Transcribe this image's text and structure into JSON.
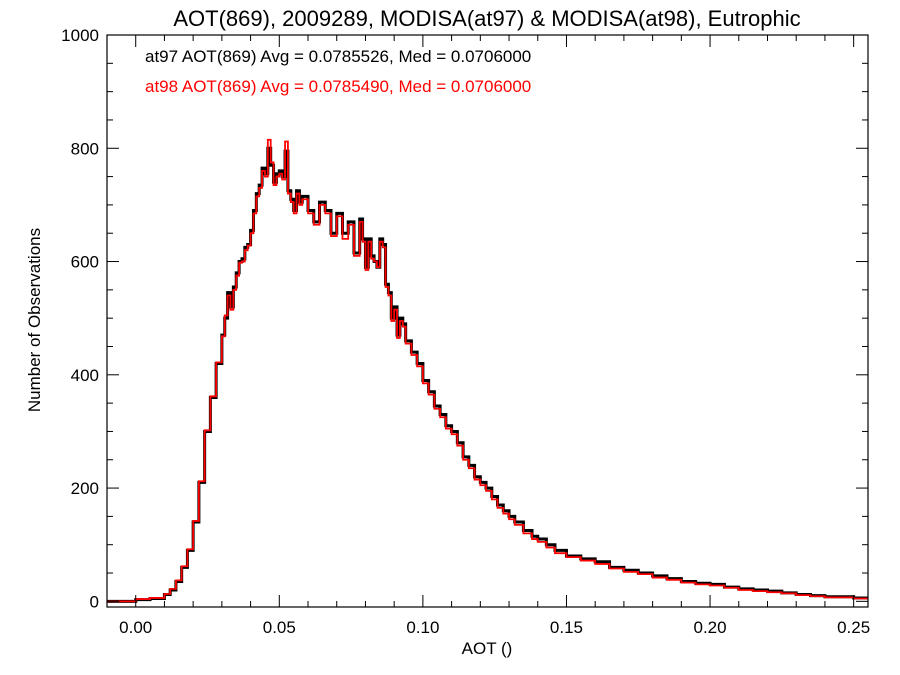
{
  "chart_data": {
    "type": "line",
    "title": "AOT(869), 2009289, MODISA(at97) & MODISA(at98), Eutrophic",
    "xlabel": "AOT ()",
    "ylabel": "Number of Observations",
    "xlim": [
      -0.01,
      0.255
    ],
    "ylim": [
      -10,
      1000
    ],
    "xticks": [
      0.0,
      0.05,
      0.1,
      0.15,
      0.2,
      0.25
    ],
    "xtick_labels": [
      "0.00",
      "0.05",
      "0.10",
      "0.15",
      "0.20",
      "0.25"
    ],
    "yticks": [
      0,
      200,
      400,
      600,
      800,
      1000
    ],
    "ytick_labels": [
      "0",
      "200",
      "400",
      "600",
      "800",
      "1000"
    ],
    "grid": false,
    "legend_placement": "top-left",
    "step": "histogram",
    "x": [
      -0.01,
      0.0,
      0.005,
      0.01,
      0.012,
      0.014,
      0.016,
      0.018,
      0.02,
      0.022,
      0.024,
      0.026,
      0.028,
      0.03,
      0.031,
      0.032,
      0.033,
      0.034,
      0.035,
      0.036,
      0.037,
      0.038,
      0.039,
      0.04,
      0.041,
      0.042,
      0.043,
      0.044,
      0.045,
      0.046,
      0.047,
      0.048,
      0.049,
      0.05,
      0.051,
      0.052,
      0.053,
      0.054,
      0.055,
      0.056,
      0.057,
      0.058,
      0.06,
      0.062,
      0.064,
      0.066,
      0.068,
      0.07,
      0.072,
      0.074,
      0.076,
      0.078,
      0.079,
      0.08,
      0.081,
      0.082,
      0.083,
      0.084,
      0.085,
      0.086,
      0.087,
      0.088,
      0.089,
      0.09,
      0.091,
      0.092,
      0.093,
      0.094,
      0.096,
      0.098,
      0.1,
      0.102,
      0.104,
      0.106,
      0.108,
      0.11,
      0.112,
      0.114,
      0.116,
      0.118,
      0.12,
      0.122,
      0.124,
      0.126,
      0.128,
      0.13,
      0.132,
      0.135,
      0.138,
      0.14,
      0.143,
      0.146,
      0.15,
      0.155,
      0.16,
      0.165,
      0.17,
      0.175,
      0.18,
      0.185,
      0.19,
      0.195,
      0.2,
      0.205,
      0.21,
      0.215,
      0.22,
      0.225,
      0.23,
      0.235,
      0.24,
      0.245,
      0.25
    ],
    "series": [
      {
        "name": "at97",
        "color": "#000000",
        "values": [
          0,
          3,
          5,
          12,
          20,
          35,
          60,
          90,
          140,
          210,
          300,
          360,
          420,
          470,
          500,
          545,
          520,
          555,
          580,
          600,
          605,
          625,
          630,
          655,
          690,
          720,
          735,
          765,
          755,
          800,
          770,
          740,
          755,
          760,
          750,
          795,
          725,
          710,
          690,
          725,
          705,
          715,
          690,
          670,
          705,
          690,
          650,
          685,
          650,
          670,
          615,
          675,
          640,
          590,
          640,
          610,
          600,
          590,
          640,
          630,
          560,
          545,
          500,
          520,
          470,
          500,
          490,
          460,
          440,
          420,
          390,
          370,
          345,
          330,
          310,
          300,
          280,
          255,
          240,
          220,
          210,
          200,
          185,
          170,
          160,
          150,
          140,
          125,
          115,
          110,
          100,
          90,
          80,
          75,
          70,
          60,
          55,
          50,
          45,
          40,
          35,
          32,
          30,
          25,
          22,
          20,
          18,
          15,
          12,
          10,
          8,
          8,
          6
        ]
      },
      {
        "name": "at98",
        "color": "#ff0000",
        "values": [
          0,
          4,
          6,
          13,
          22,
          37,
          62,
          92,
          142,
          212,
          302,
          362,
          422,
          468,
          505,
          540,
          515,
          550,
          575,
          598,
          600,
          620,
          628,
          650,
          685,
          715,
          730,
          760,
          750,
          815,
          775,
          735,
          750,
          755,
          745,
          812,
          720,
          705,
          685,
          720,
          700,
          710,
          685,
          665,
          700,
          685,
          645,
          680,
          640,
          665,
          610,
          670,
          635,
          585,
          635,
          605,
          600,
          590,
          635,
          625,
          555,
          540,
          495,
          515,
          465,
          495,
          485,
          455,
          435,
          415,
          385,
          365,
          340,
          325,
          305,
          295,
          275,
          250,
          235,
          215,
          205,
          195,
          180,
          165,
          155,
          145,
          135,
          120,
          110,
          105,
          95,
          85,
          78,
          72,
          66,
          58,
          52,
          48,
          42,
          38,
          33,
          30,
          28,
          24,
          20,
          18,
          16,
          14,
          11,
          9,
          7,
          7,
          5
        ]
      }
    ],
    "annotations": [
      {
        "text": "at97 AOT(869) Avg = 0.0785526, Med = 0.0706000",
        "color": "#000000"
      },
      {
        "text": "at98 AOT(869) Avg = 0.0785490, Med = 0.0706000",
        "color": "#ff0000"
      }
    ]
  }
}
